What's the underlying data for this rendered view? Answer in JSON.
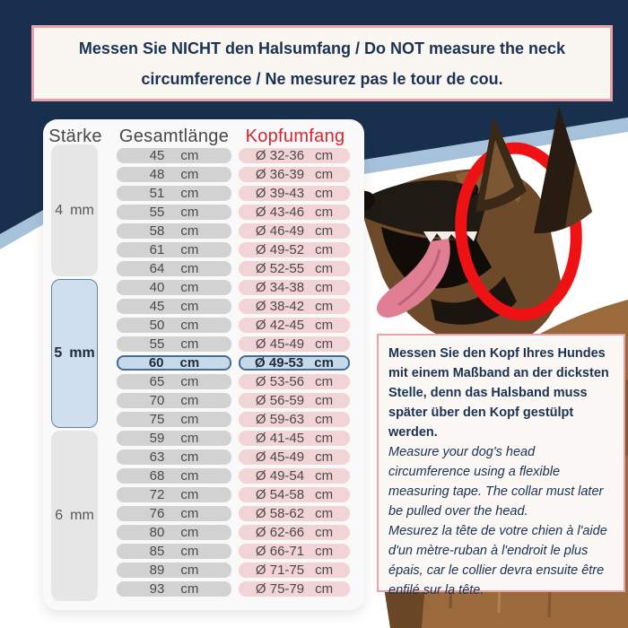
{
  "banner": {
    "text": "Messen Sie NICHT den Halsumfang / Do NOT measure the neck circumference / Ne mesurez pas le tour de cou."
  },
  "table": {
    "headers": {
      "thickness": "Stärke",
      "length": "Gesamtlänge",
      "head": "Kopfumfang"
    },
    "length_unit": "cm",
    "head_unit": "cm",
    "thickness_unit": "mm",
    "diameter_prefix": "Ø",
    "groups": [
      {
        "thickness": "4",
        "rows": [
          {
            "length": "45",
            "head": "32-36"
          },
          {
            "length": "48",
            "head": "36-39"
          },
          {
            "length": "51",
            "head": "39-43"
          },
          {
            "length": "55",
            "head": "43-46"
          },
          {
            "length": "58",
            "head": "46-49"
          },
          {
            "length": "61",
            "head": "49-52"
          },
          {
            "length": "64",
            "head": "52-55"
          }
        ]
      },
      {
        "thickness": "5",
        "rows": [
          {
            "length": "40",
            "head": "34-38"
          },
          {
            "length": "45",
            "head": "38-42"
          },
          {
            "length": "50",
            "head": "42-45"
          },
          {
            "length": "55",
            "head": "45-49"
          },
          {
            "length": "60",
            "head": "49-53",
            "highlight": true
          },
          {
            "length": "65",
            "head": "53-56"
          },
          {
            "length": "70",
            "head": "56-59"
          },
          {
            "length": "75",
            "head": "59-63"
          }
        ]
      },
      {
        "thickness": "6",
        "rows": [
          {
            "length": "59",
            "head": "41-45"
          },
          {
            "length": "63",
            "head": "45-49"
          },
          {
            "length": "68",
            "head": "49-54"
          },
          {
            "length": "72",
            "head": "54-58"
          },
          {
            "length": "76",
            "head": "58-62"
          },
          {
            "length": "80",
            "head": "62-66"
          },
          {
            "length": "85",
            "head": "66-71"
          },
          {
            "length": "89",
            "head": "71-75"
          },
          {
            "length": "93",
            "head": "75-79"
          }
        ]
      }
    ]
  },
  "info": {
    "de": "Messen Sie den Kopf Ihres Hundes mit einem Maßband an der dicksten Stelle, denn das Halsband muss später über den Kopf gestülpt werden.",
    "en": "Measure your dog's head circumference using a flexible measuring tape. The collar must later be pulled over the head.",
    "fr": "Mesurez la tête de votre chien à l'aide d'un mètre-ruban à l'endroit le plus épais, car le collier devra ensuite être enfilé sur la tête."
  },
  "colors": {
    "navy": "#18304e",
    "stripe_blue": "#a6c2da",
    "accent_red": "#d6262c",
    "circle_red": "#ee1214",
    "pink_border": "#e9a1a7",
    "highlight_blue": "#c7daeb",
    "pill_gray": "#d2d2d2",
    "pill_pink": "#f2d3d6"
  }
}
